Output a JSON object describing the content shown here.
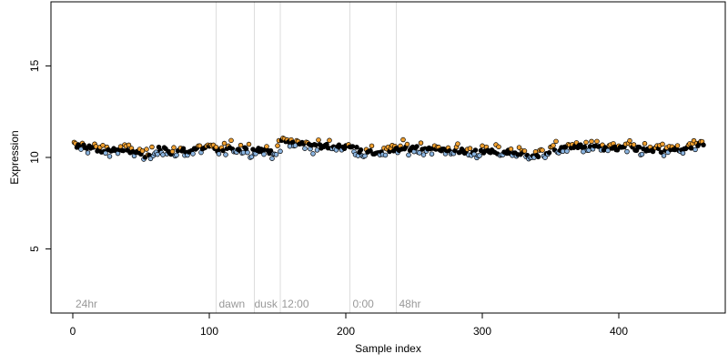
{
  "chart_data": {
    "type": "scatter",
    "xlabel": "Sample index",
    "ylabel": "Expression",
    "xlim": [
      -16,
      478
    ],
    "ylim": [
      1.5,
      18.5
    ],
    "x_ticks": [
      0,
      100,
      200,
      300,
      400
    ],
    "y_ticks": [
      5,
      10,
      15
    ],
    "grid": false,
    "vlines": [
      105,
      133,
      152,
      203,
      237
    ],
    "annotations": [
      {
        "text": "24hr",
        "x": 2
      },
      {
        "text": "dawn",
        "x": 107
      },
      {
        "text": "dusk",
        "x": 133
      },
      {
        "text": "12:00",
        "x": 153
      },
      {
        "text": "0:00",
        "x": 205
      },
      {
        "text": "48hr",
        "x": 239
      }
    ],
    "annotation_y": 2,
    "n_points": 462,
    "x_range": [
      1,
      462
    ],
    "segments": [
      {
        "x": [
          1,
          10,
          20,
          30,
          40,
          48,
          52,
          55,
          58,
          62,
          65,
          68,
          70,
          72,
          75,
          80,
          85,
          90,
          95,
          100,
          105,
          110,
          115,
          120,
          125,
          130,
          135,
          140,
          143,
          146,
          150,
          152
        ],
        "y": [
          10.6,
          10.6,
          10.4,
          10.4,
          10.4,
          10.3,
          10.1,
          10.0,
          10.2,
          10.5,
          10.5,
          10.4,
          10.3,
          10.1,
          10.3,
          10.4,
          10.3,
          10.4,
          10.5,
          10.5,
          10.4,
          10.4,
          10.5,
          10.5,
          10.5,
          10.4,
          10.4,
          10.4,
          10.3,
          10.3,
          10.4,
          10.5
        ]
      },
      {
        "x": [
          153,
          160,
          170,
          180,
          190,
          200,
          205,
          210,
          215,
          220,
          225,
          230,
          240,
          250,
          260,
          270,
          280,
          290,
          300,
          310,
          320,
          330,
          335,
          340,
          345,
          350,
          360,
          370,
          380,
          390,
          400,
          410,
          420,
          430,
          440,
          450,
          455,
          462
        ],
        "y": [
          10.9,
          10.8,
          10.7,
          10.6,
          10.6,
          10.6,
          10.5,
          10.4,
          10.2,
          10.3,
          10.3,
          10.3,
          10.5,
          10.5,
          10.5,
          10.4,
          10.4,
          10.3,
          10.3,
          10.3,
          10.3,
          10.2,
          10.2,
          10.1,
          10.2,
          10.4,
          10.5,
          10.6,
          10.6,
          10.5,
          10.5,
          10.5,
          10.4,
          10.4,
          10.4,
          10.5,
          10.6,
          10.7
        ]
      }
    ],
    "noise_sd": 0.17,
    "color_map": {
      "below": "#8ab4e0",
      "near": "#000000",
      "above": "#f0a030"
    },
    "colors": {
      "axis": "#000000",
      "vline": "#dddddd",
      "annotation": "#999999",
      "marker_outline": "#000000"
    }
  }
}
